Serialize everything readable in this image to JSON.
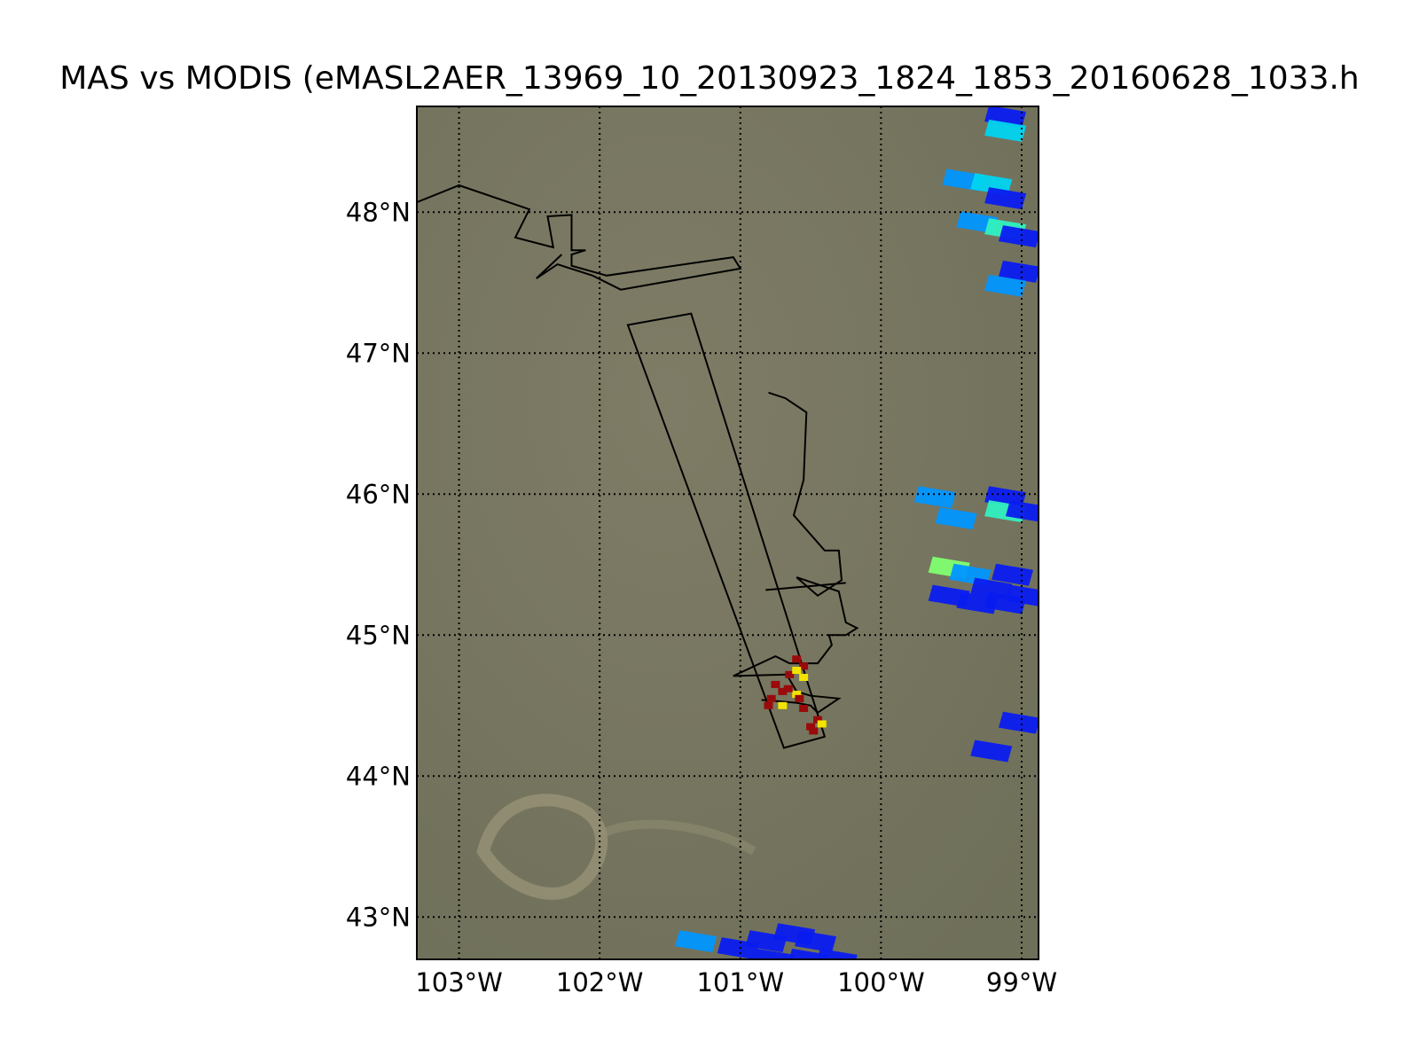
{
  "title": "MAS vs MODIS (eMASL2AER_13969_10_20130923_1824_1853_20160628_1033.h",
  "map": {
    "extent": {
      "lon_min": -103.3,
      "lon_max": -98.88,
      "lat_min": 42.7,
      "lat_max": 48.75
    },
    "parallels": [
      43,
      44,
      45,
      46,
      47,
      48
    ],
    "meridians": [
      -103,
      -102,
      -101,
      -100,
      -99
    ],
    "lat_labels": [
      "43°N",
      "44°N",
      "45°N",
      "46°N",
      "47°N",
      "48°N"
    ],
    "lon_labels": [
      "103°W",
      "102°W",
      "101°W",
      "100°W",
      "99°W"
    ],
    "grid": true,
    "colors": {
      "frame": "#000000",
      "grid": "#000000",
      "background": "#7a7a62",
      "cell_blue": "#0a1cf0",
      "cell_azure": "#0096ff",
      "cell_cyan": "#00d4f0",
      "cell_aqua": "#30f0c0",
      "cell_green": "#80ff70",
      "fire_red": "#9a0a0a",
      "fire_yellow": "#f2e400"
    }
  },
  "modis_cells": [
    [
      -99.1,
      48.7,
      "#0a1cf0"
    ],
    [
      -99.1,
      48.6,
      "#00d4f0"
    ],
    [
      -99.4,
      48.25,
      "#0096ff"
    ],
    [
      -99.2,
      48.22,
      "#00d4f0"
    ],
    [
      -99.1,
      48.12,
      "#0a1cf0"
    ],
    [
      -99.3,
      47.95,
      "#0096ff"
    ],
    [
      -99.1,
      47.9,
      "#30f0c0"
    ],
    [
      -99.0,
      47.85,
      "#0a1cf0"
    ],
    [
      -99.0,
      47.6,
      "#0a1cf0"
    ],
    [
      -99.1,
      47.5,
      "#0096ff"
    ],
    [
      -99.6,
      46.0,
      "#0096ff"
    ],
    [
      -99.45,
      45.85,
      "#0096ff"
    ],
    [
      -99.1,
      46.0,
      "#0a1cf0"
    ],
    [
      -99.1,
      45.9,
      "#30f0c0"
    ],
    [
      -98.95,
      45.9,
      "#0a1cf0"
    ],
    [
      -99.5,
      45.5,
      "#80ff70"
    ],
    [
      -99.35,
      45.45,
      "#0096ff"
    ],
    [
      -99.2,
      45.35,
      "#0a1cf0"
    ],
    [
      -99.05,
      45.45,
      "#0a1cf0"
    ],
    [
      -99.3,
      45.25,
      "#0a1cf0"
    ],
    [
      -99.5,
      45.3,
      "#0a1cf0"
    ],
    [
      -99.1,
      45.25,
      "#0a1cf0"
    ],
    [
      -98.95,
      45.3,
      "#0a1cf0"
    ],
    [
      -99.2,
      44.2,
      "#0a1cf0"
    ],
    [
      -99.0,
      44.4,
      "#0a1cf0"
    ],
    [
      -101.3,
      42.85,
      "#0096ff"
    ],
    [
      -101.0,
      42.8,
      "#0a1cf0"
    ],
    [
      -100.8,
      42.85,
      "#0a1cf0"
    ],
    [
      -100.6,
      42.9,
      "#0a1cf0"
    ],
    [
      -100.45,
      42.85,
      "#0a1cf0"
    ],
    [
      -100.75,
      42.72,
      "#0a1cf0"
    ],
    [
      -100.5,
      42.72,
      "#0a1cf0"
    ],
    [
      -100.3,
      42.72,
      "#0a1cf0"
    ]
  ],
  "swath": [
    [
      -101.8,
      47.2
    ],
    [
      -101.35,
      47.28
    ],
    [
      -100.4,
      44.28
    ],
    [
      -100.69,
      44.2
    ]
  ],
  "boundary_north": [
    [
      -103.3,
      48.07
    ],
    [
      -103.0,
      48.19
    ],
    [
      -102.5,
      48.02
    ],
    [
      -102.6,
      47.82
    ],
    [
      -102.33,
      47.75
    ],
    [
      -102.37,
      47.97
    ],
    [
      -102.2,
      47.98
    ],
    [
      -102.2,
      47.73
    ],
    [
      -102.1,
      47.73
    ],
    [
      -102.2,
      47.7
    ],
    [
      -102.2,
      47.62
    ],
    [
      -101.95,
      47.55
    ],
    [
      -101.05,
      47.68
    ],
    [
      -101.0,
      47.6
    ],
    [
      -101.85,
      47.45
    ],
    [
      -102.05,
      47.55
    ],
    [
      -102.3,
      47.63
    ],
    [
      -102.45,
      47.53
    ],
    [
      -102.27,
      47.7
    ]
  ],
  "boundary_river": [
    [
      -100.8,
      46.72
    ],
    [
      -100.68,
      46.68
    ],
    [
      -100.53,
      46.58
    ],
    [
      -100.55,
      46.1
    ],
    [
      -100.62,
      45.85
    ],
    [
      -100.4,
      45.6
    ],
    [
      -100.3,
      45.6
    ],
    [
      -100.28,
      45.39
    ],
    [
      -100.45,
      45.28
    ],
    [
      -100.6,
      45.41
    ],
    [
      -100.3,
      45.31
    ],
    [
      -100.25,
      45.09
    ],
    [
      -100.17,
      45.05
    ],
    [
      -100.25,
      45.0
    ],
    [
      -100.37,
      45.0
    ],
    [
      -100.35,
      44.93
    ],
    [
      -100.45,
      44.8
    ],
    [
      -100.65,
      44.8
    ],
    [
      -100.75,
      44.85
    ],
    [
      -101.05,
      44.71
    ],
    [
      -100.67,
      44.72
    ],
    [
      -100.6,
      44.6
    ],
    [
      -100.5,
      44.57
    ],
    [
      -100.3,
      44.55
    ],
    [
      -100.45,
      44.45
    ],
    [
      -100.5,
      44.5
    ],
    [
      -100.6,
      44.52
    ],
    [
      -100.85,
      44.54
    ]
  ],
  "boundary_spur": [
    [
      -100.82,
      45.32
    ],
    [
      -100.47,
      45.35
    ],
    [
      -100.25,
      45.37
    ]
  ],
  "fire_points": [
    [
      -100.6,
      44.83,
      "#9a0a0a"
    ],
    [
      -100.55,
      44.78,
      "#9a0a0a"
    ],
    [
      -100.65,
      44.72,
      "#9a0a0a"
    ],
    [
      -100.55,
      44.7,
      "#f2e400"
    ],
    [
      -100.75,
      44.65,
      "#9a0a0a"
    ],
    [
      -100.7,
      44.6,
      "#9a0a0a"
    ],
    [
      -100.6,
      44.58,
      "#f2e400"
    ],
    [
      -100.78,
      44.55,
      "#9a0a0a"
    ],
    [
      -100.7,
      44.5,
      "#f2e400"
    ],
    [
      -100.55,
      44.48,
      "#9a0a0a"
    ],
    [
      -100.45,
      44.4,
      "#9a0a0a"
    ],
    [
      -100.42,
      44.37,
      "#f2e400"
    ],
    [
      -100.5,
      44.35,
      "#9a0a0a"
    ],
    [
      -100.6,
      44.75,
      "#f2e400"
    ],
    [
      -100.66,
      44.62,
      "#9a0a0a"
    ],
    [
      -100.8,
      44.5,
      "#9a0a0a"
    ],
    [
      -100.48,
      44.32,
      "#9a0a0a"
    ],
    [
      -100.58,
      44.55,
      "#9a0a0a"
    ]
  ]
}
